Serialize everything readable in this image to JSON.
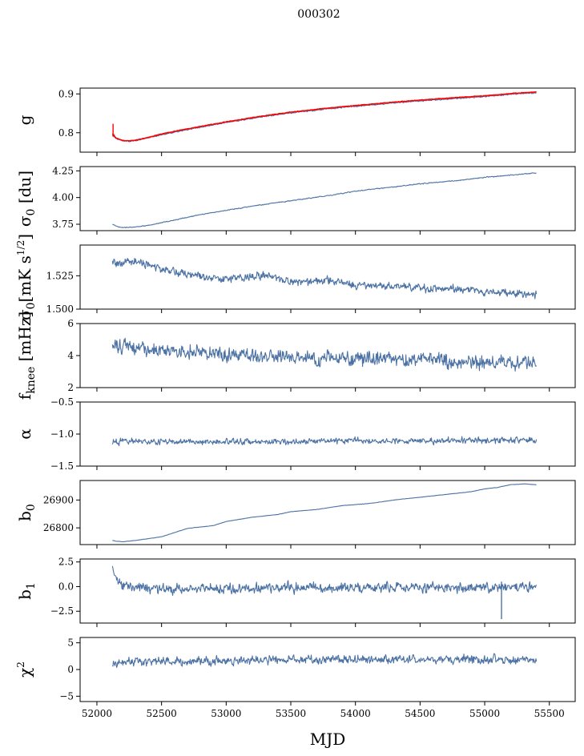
{
  "figure": {
    "title": "000302",
    "xlabel": "MJD"
  },
  "colors": {
    "series": "#4c72a4",
    "fit": "#ff0000",
    "axis": "#000000"
  },
  "chart_data": [
    {
      "type": "line",
      "ylabel": "g",
      "ylim": [
        0.75,
        0.915
      ],
      "yticks": [
        {
          "value": 0.8,
          "label": "0.8"
        },
        {
          "value": 0.9,
          "label": "0.9"
        }
      ],
      "xlim": [
        51870,
        55700
      ],
      "xticks": [
        52000,
        52500,
        53000,
        53500,
        54000,
        54500,
        55000,
        55500
      ],
      "show_xtick_labels": false,
      "series": [
        {
          "role": "data",
          "x": [
            52120,
            52150,
            52200,
            52250,
            52300,
            52400,
            52500,
            52700,
            53000,
            53300,
            53500,
            53800,
            54000,
            54300,
            54500,
            54800,
            55000,
            55200,
            55400
          ],
          "y": [
            0.795,
            0.785,
            0.779,
            0.778,
            0.78,
            0.787,
            0.795,
            0.808,
            0.826,
            0.842,
            0.851,
            0.862,
            0.868,
            0.877,
            0.882,
            0.889,
            0.893,
            0.899,
            0.903
          ],
          "noise": 0.0015
        },
        {
          "role": "fit",
          "x": [
            52120,
            52150,
            52200,
            52250,
            52300,
            52400,
            52500,
            52700,
            53000,
            53300,
            53500,
            53800,
            54000,
            54300,
            54500,
            54800,
            55000,
            55200,
            55400
          ],
          "y": [
            0.798,
            0.786,
            0.78,
            0.779,
            0.781,
            0.788,
            0.797,
            0.81,
            0.828,
            0.844,
            0.853,
            0.864,
            0.87,
            0.879,
            0.884,
            0.891,
            0.895,
            0.901,
            0.905
          ],
          "noise": 0.0008,
          "spike": {
            "x": 52125,
            "ymin": 0.79,
            "ymax": 0.823
          }
        }
      ]
    },
    {
      "type": "line",
      "ylabel": "σ0 [du]",
      "ylim": [
        3.69,
        4.29
      ],
      "yticks": [
        {
          "value": 3.75,
          "label": "3.75"
        },
        {
          "value": 4.0,
          "label": "4.00"
        },
        {
          "value": 4.25,
          "label": "4.25"
        }
      ],
      "xlim": [
        51870,
        55700
      ],
      "xticks": [
        52000,
        52500,
        53000,
        53500,
        54000,
        54500,
        55000,
        55500
      ],
      "show_xtick_labels": false,
      "series": [
        {
          "role": "data",
          "x": [
            52120,
            52150,
            52200,
            52300,
            52400,
            52600,
            52800,
            53000,
            53200,
            53500,
            53800,
            54000,
            54300,
            54500,
            54800,
            55000,
            55200,
            55400
          ],
          "y": [
            3.75,
            3.73,
            3.72,
            3.725,
            3.74,
            3.79,
            3.84,
            3.88,
            3.92,
            3.97,
            4.02,
            4.06,
            4.1,
            4.13,
            4.16,
            4.19,
            4.21,
            4.23
          ],
          "noise": 0.004
        }
      ]
    },
    {
      "type": "line",
      "ylabel": "σ0[mK s^1/2]",
      "ylim": [
        1.5,
        1.548
      ],
      "yticks": [
        {
          "value": 1.5,
          "label": "1.500"
        },
        {
          "value": 1.525,
          "label": "1.525"
        }
      ],
      "xlim": [
        51870,
        55700
      ],
      "xticks": [
        52000,
        52500,
        53000,
        53500,
        54000,
        54500,
        55000,
        55500
      ],
      "show_xtick_labels": false,
      "series": [
        {
          "role": "data",
          "x": [
            52120,
            52200,
            52300,
            52500,
            52700,
            53000,
            53300,
            53500,
            53800,
            54000,
            54300,
            54500,
            54800,
            55000,
            55200,
            55400
          ],
          "y": [
            1.535,
            1.533,
            1.536,
            1.53,
            1.526,
            1.523,
            1.525,
            1.52,
            1.521,
            1.518,
            1.517,
            1.516,
            1.515,
            1.513,
            1.512,
            1.511
          ],
          "noise": 0.003
        }
      ]
    },
    {
      "type": "line",
      "ylabel": "f_knee [mHz]",
      "ylim": [
        2,
        6
      ],
      "yticks": [
        {
          "value": 2,
          "label": "2"
        },
        {
          "value": 4,
          "label": "4"
        },
        {
          "value": 6,
          "label": "6"
        }
      ],
      "xlim": [
        51870,
        55700
      ],
      "xticks": [
        52000,
        52500,
        53000,
        53500,
        54000,
        54500,
        55000,
        55500
      ],
      "show_xtick_labels": false,
      "series": [
        {
          "role": "data",
          "x": [
            52120,
            52300,
            52600,
            53000,
            53500,
            54000,
            54500,
            55000,
            55400
          ],
          "y": [
            4.6,
            4.5,
            4.3,
            4.1,
            3.9,
            3.8,
            3.7,
            3.6,
            3.5
          ],
          "noise": 0.45
        }
      ]
    },
    {
      "type": "line",
      "ylabel": "α",
      "ylim": [
        -1.5,
        -0.5
      ],
      "yticks": [
        {
          "value": -1.5,
          "label": "−1.5"
        },
        {
          "value": -1.0,
          "label": "−1.0"
        },
        {
          "value": -0.5,
          "label": "−0.5"
        }
      ],
      "xlim": [
        51870,
        55700
      ],
      "xticks": [
        52000,
        52500,
        53000,
        53500,
        54000,
        54500,
        55000,
        55500
      ],
      "show_xtick_labels": false,
      "series": [
        {
          "role": "data",
          "x": [
            52120,
            53000,
            54000,
            55000,
            55400
          ],
          "y": [
            -1.12,
            -1.12,
            -1.11,
            -1.1,
            -1.1
          ],
          "noise": 0.045
        }
      ]
    },
    {
      "type": "line",
      "ylabel": "b0",
      "ylim": [
        26740,
        26970
      ],
      "yticks": [
        {
          "value": 26800,
          "label": "26800"
        },
        {
          "value": 26900,
          "label": "26900"
        }
      ],
      "xlim": [
        51870,
        55700
      ],
      "xticks": [
        52000,
        52500,
        53000,
        53500,
        54000,
        54500,
        55000,
        55500
      ],
      "show_xtick_labels": false,
      "series": [
        {
          "role": "data",
          "x": [
            52120,
            52150,
            52200,
            52300,
            52500,
            52700,
            52900,
            53000,
            53200,
            53400,
            53500,
            53700,
            53900,
            54100,
            54300,
            54500,
            54700,
            54900,
            55000,
            55100,
            55200,
            55300,
            55400
          ],
          "y": [
            26755,
            26752,
            26750,
            26755,
            26768,
            26798,
            26808,
            26823,
            26838,
            26848,
            26858,
            26866,
            26880,
            26887,
            26900,
            26910,
            26920,
            26930,
            26940,
            26945,
            26955,
            26958,
            26955
          ],
          "noise": 0.6
        }
      ]
    },
    {
      "type": "line",
      "ylabel": "b1",
      "ylim": [
        -3.7,
        2.8
      ],
      "yticks": [
        {
          "value": -2.5,
          "label": "−2.5"
        },
        {
          "value": 0.0,
          "label": "0.0"
        },
        {
          "value": 2.5,
          "label": "2.5"
        }
      ],
      "xlim": [
        51870,
        55700
      ],
      "xticks": [
        52000,
        52500,
        53000,
        53500,
        54000,
        54500,
        55000,
        55500
      ],
      "show_xtick_labels": false,
      "series": [
        {
          "role": "data",
          "x": [
            52120,
            52150,
            52200,
            52400,
            53000,
            54000,
            55000,
            55400
          ],
          "y": [
            1.8,
            0.8,
            0.1,
            -0.2,
            -0.2,
            -0.1,
            -0.1,
            -0.1
          ],
          "noise": 0.5,
          "spike": {
            "x": 55130,
            "ymin": -3.3,
            "ymax": 0.5
          }
        }
      ]
    },
    {
      "type": "line",
      "ylabel": "χ²",
      "ylim": [
        -6,
        6
      ],
      "yticks": [
        {
          "value": -5,
          "label": "−5"
        },
        {
          "value": 0,
          "label": "0"
        },
        {
          "value": 5,
          "label": "5"
        }
      ],
      "xlim": [
        51870,
        55700
      ],
      "xticks": [
        52000,
        52500,
        53000,
        53500,
        54000,
        54500,
        55000,
        55500
      ],
      "show_xtick_labels": true,
      "series": [
        {
          "role": "data",
          "x": [
            52120,
            52500,
            53000,
            53500,
            54000,
            54500,
            55000,
            55400
          ],
          "y": [
            1.2,
            1.5,
            1.6,
            1.8,
            1.9,
            1.9,
            1.8,
            1.9
          ],
          "noise": 0.8
        }
      ]
    }
  ]
}
